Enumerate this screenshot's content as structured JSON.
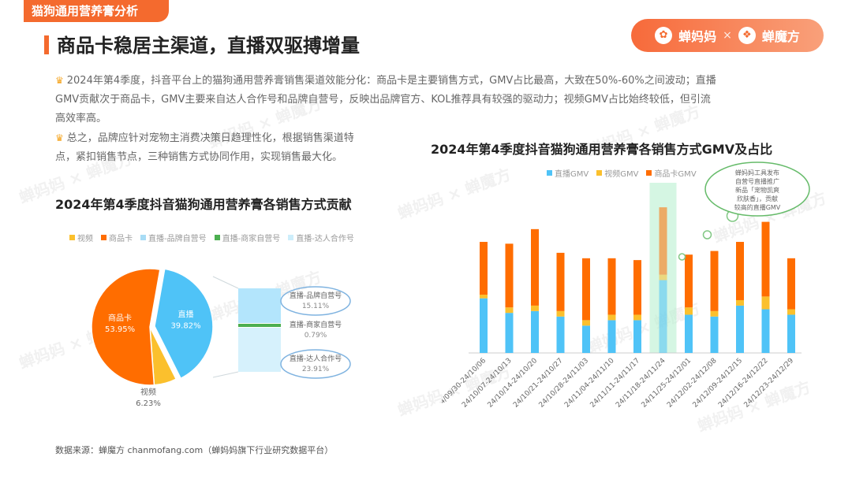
{
  "header": {
    "tag": "猫狗通用营养膏分析",
    "title": "商品卡稳居主渠道，直播双驱搏增量",
    "brand_left": "蝉妈妈",
    "brand_sep": "×",
    "brand_right": "蝉魔方"
  },
  "paragraphs": {
    "p1_line1": "2024年第4季度，抖音平台上的猫狗通用营养膏销售渠道效能分化：商品卡是主要销售方式，GMV占比最高，大致在50%-60%之间波动；直播",
    "p1_line2": "GMV贡献次于商品卡，GMV主要来自达人合作号和品牌自营号，反映出品牌官方、KOL推荐具有较强的驱动力；视频GMV占比始终较低，但引流",
    "p1_line3": "高效率高。",
    "p2_line1": "总之，品牌应针对宠物主消费决策日趋理性化，根据销售渠道特",
    "p2_line2": "点，紧扣销售节点，三种销售方式协同作用，实现销售最大化。"
  },
  "source": "数据来源：蝉魔方 chanmofang.com（蝉妈妈旗下行业研究数据平台）",
  "watermark": "蝉妈妈 × 蝉魔方",
  "colors": {
    "accent": "#f46a2e",
    "live": "#4fc3f7",
    "video": "#fbc02d",
    "card": "#ff6d00"
  },
  "chart_data": [
    {
      "type": "pie",
      "title": "2024年第4季度抖音猫狗通用营养膏各销售方式贡献",
      "legend": [
        "视频",
        "商品卡",
        "直播-品牌自营号",
        "直播-商家自营号",
        "直播-达人合作号"
      ],
      "slices": [
        {
          "name": "商品卡",
          "label": "商品卡",
          "percent": 53.95,
          "percent_label": "53.95%"
        },
        {
          "name": "直播",
          "label": "直播",
          "percent": 39.82,
          "percent_label": "39.82%"
        },
        {
          "name": "视频",
          "label": "视频",
          "percent": 6.23,
          "percent_label": "6.23%"
        }
      ],
      "breakdown": [
        {
          "name": "直播-品牌自营号",
          "percent_label": "15.11%"
        },
        {
          "name": "直播-商家自营号",
          "percent_label": "0.79%"
        },
        {
          "name": "直播-达人合作号",
          "percent_label": "23.91%"
        }
      ]
    },
    {
      "type": "bar",
      "stacked": true,
      "title": "2024年第4季度抖音猫狗通用营养膏各销售方式GMV及占比",
      "categories": [
        "24/09/30-24/10/06",
        "24/10/07-24/10/13",
        "24/10/14-24/10/20",
        "24/10/21-24/10/27",
        "24/10/28-24/11/03",
        "24/11/04-24/11/10",
        "24/11/11-24/11/17",
        "24/11/18-24/11/24",
        "24/11/25-24/12/01",
        "24/12/02-24/12/08",
        "24/12/09-24/12/15",
        "24/12/16-24/12/22",
        "24/12/23-24/12/29"
      ],
      "series": [
        {
          "name": "直播GMV",
          "values": [
            30,
            22,
            23,
            20,
            15,
            18,
            18,
            40,
            21,
            20,
            26,
            24,
            21
          ]
        },
        {
          "name": "视频GMV",
          "values": [
            2,
            3,
            3,
            3,
            3,
            3,
            3,
            3,
            4,
            3,
            3,
            7,
            3
          ]
        },
        {
          "name": "商品卡GMV",
          "values": [
            29,
            35,
            42,
            32,
            34,
            31,
            30,
            37,
            29,
            33,
            32,
            41,
            28
          ]
        }
      ],
      "highlight_index": 7,
      "annotation": "蝉妈妈工具发布自营号直播推广新品「宠物凯爽欣肤香」，贡献较高的直播GMV",
      "ylim": [
        0,
        90
      ]
    }
  ]
}
